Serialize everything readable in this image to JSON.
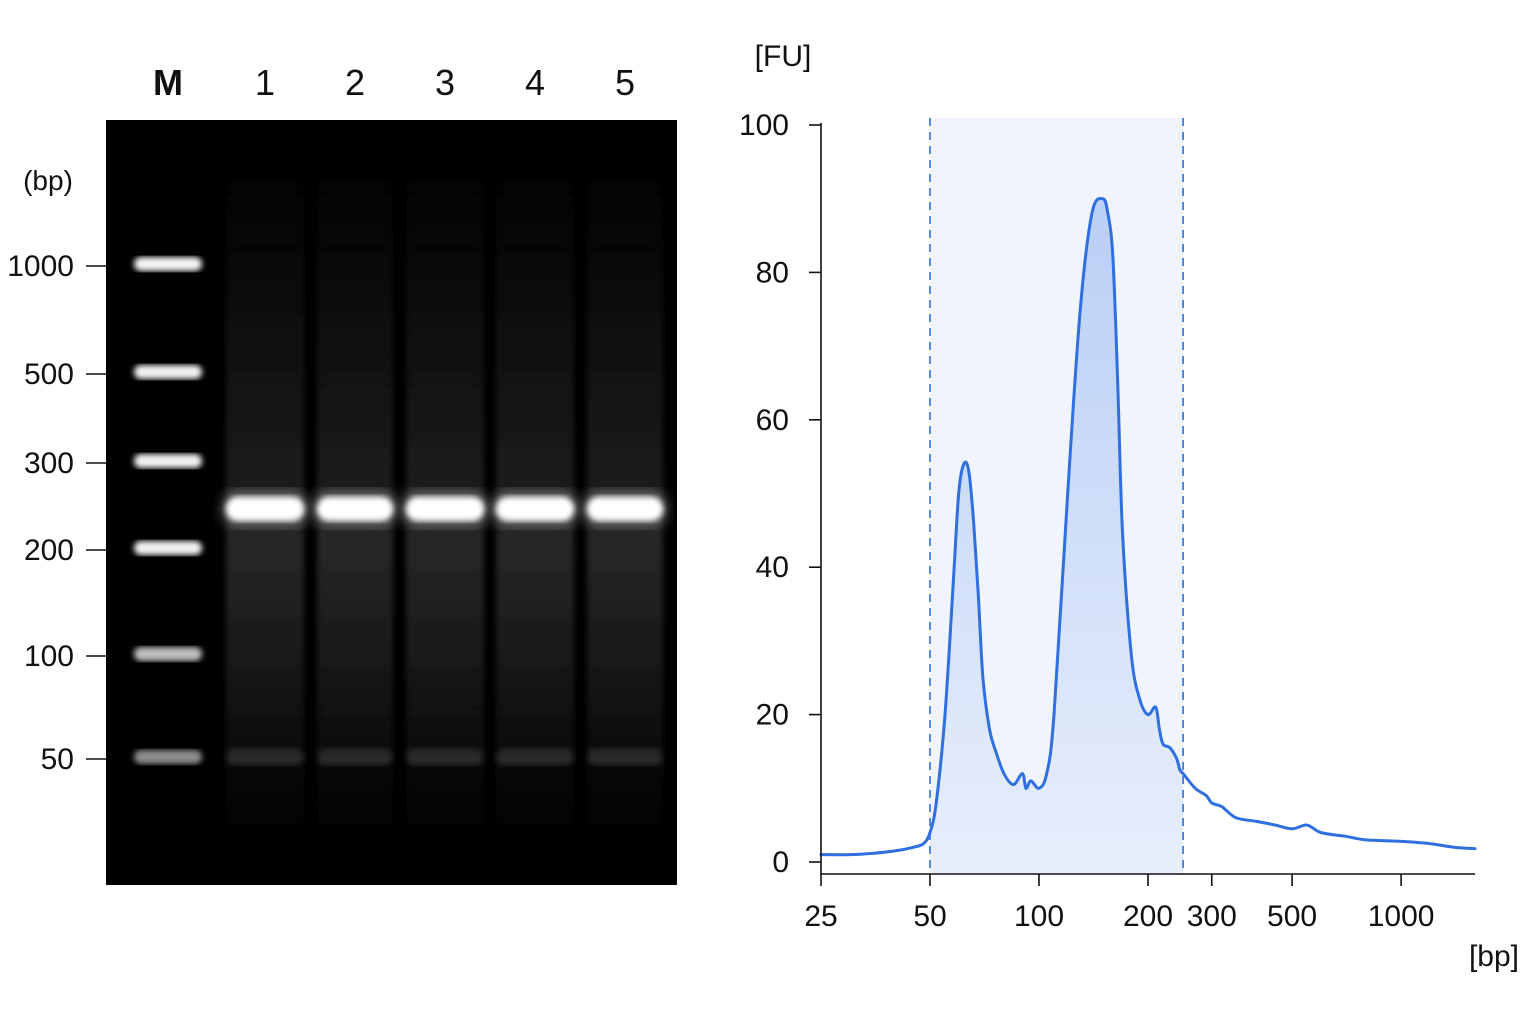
{
  "gel": {
    "unit_label": "(bp)",
    "lane_labels": [
      "M",
      "1",
      "2",
      "3",
      "4",
      "5"
    ],
    "ladder_sizes": [
      1000,
      500,
      300,
      200,
      100,
      50
    ],
    "ladder_tick_labels": [
      "1000",
      "500",
      "300",
      "200",
      "100",
      "50"
    ],
    "main_band_bp": 240,
    "faint_band_bp": 50,
    "colors": {
      "background": "#000000",
      "band": "#ffffff"
    }
  },
  "chart_data": {
    "type": "line",
    "xscale": "log",
    "ylabel": "[FU]",
    "xlabel": "[bp]",
    "xlim": [
      25,
      1600
    ],
    "ylim": [
      0,
      100
    ],
    "x_ticks": [
      25,
      50,
      100,
      200,
      300,
      500,
      1000
    ],
    "x_tick_labels": [
      "25",
      "50",
      "100",
      "200",
      "300",
      "500",
      "1000"
    ],
    "y_ticks": [
      0,
      20,
      40,
      60,
      80,
      100
    ],
    "y_tick_labels": [
      "0",
      "20",
      "40",
      "60",
      "80",
      "100"
    ],
    "highlight_range": [
      50,
      250
    ],
    "series": [
      {
        "color": "#2f6fe0",
        "x": [
          25,
          30,
          35,
          40,
          45,
          48,
          50,
          52,
          55,
          58,
          60,
          62,
          64,
          66,
          68,
          70,
          73,
          76,
          80,
          85,
          90,
          92,
          95,
          100,
          105,
          110,
          120,
          130,
          140,
          150,
          155,
          160,
          165,
          170,
          180,
          190,
          200,
          210,
          215,
          220,
          230,
          240,
          245,
          250,
          270,
          290,
          300,
          320,
          350,
          400,
          450,
          500,
          550,
          600,
          700,
          800,
          1000,
          1200,
          1400,
          1600
        ],
        "y": [
          1,
          1,
          1.2,
          1.5,
          2,
          2.5,
          4,
          8,
          20,
          38,
          50,
          54,
          53,
          46,
          36,
          25,
          18,
          15,
          12,
          10.5,
          12,
          10,
          11,
          10,
          12,
          20,
          50,
          75,
          88,
          90,
          88,
          82,
          65,
          45,
          28,
          22,
          20,
          21,
          18,
          16,
          15.5,
          14,
          12.5,
          12,
          10,
          9,
          8,
          7.5,
          6,
          5.5,
          5,
          4.5,
          5,
          4,
          3.5,
          3,
          2.8,
          2.5,
          2,
          1.8
        ]
      }
    ]
  }
}
